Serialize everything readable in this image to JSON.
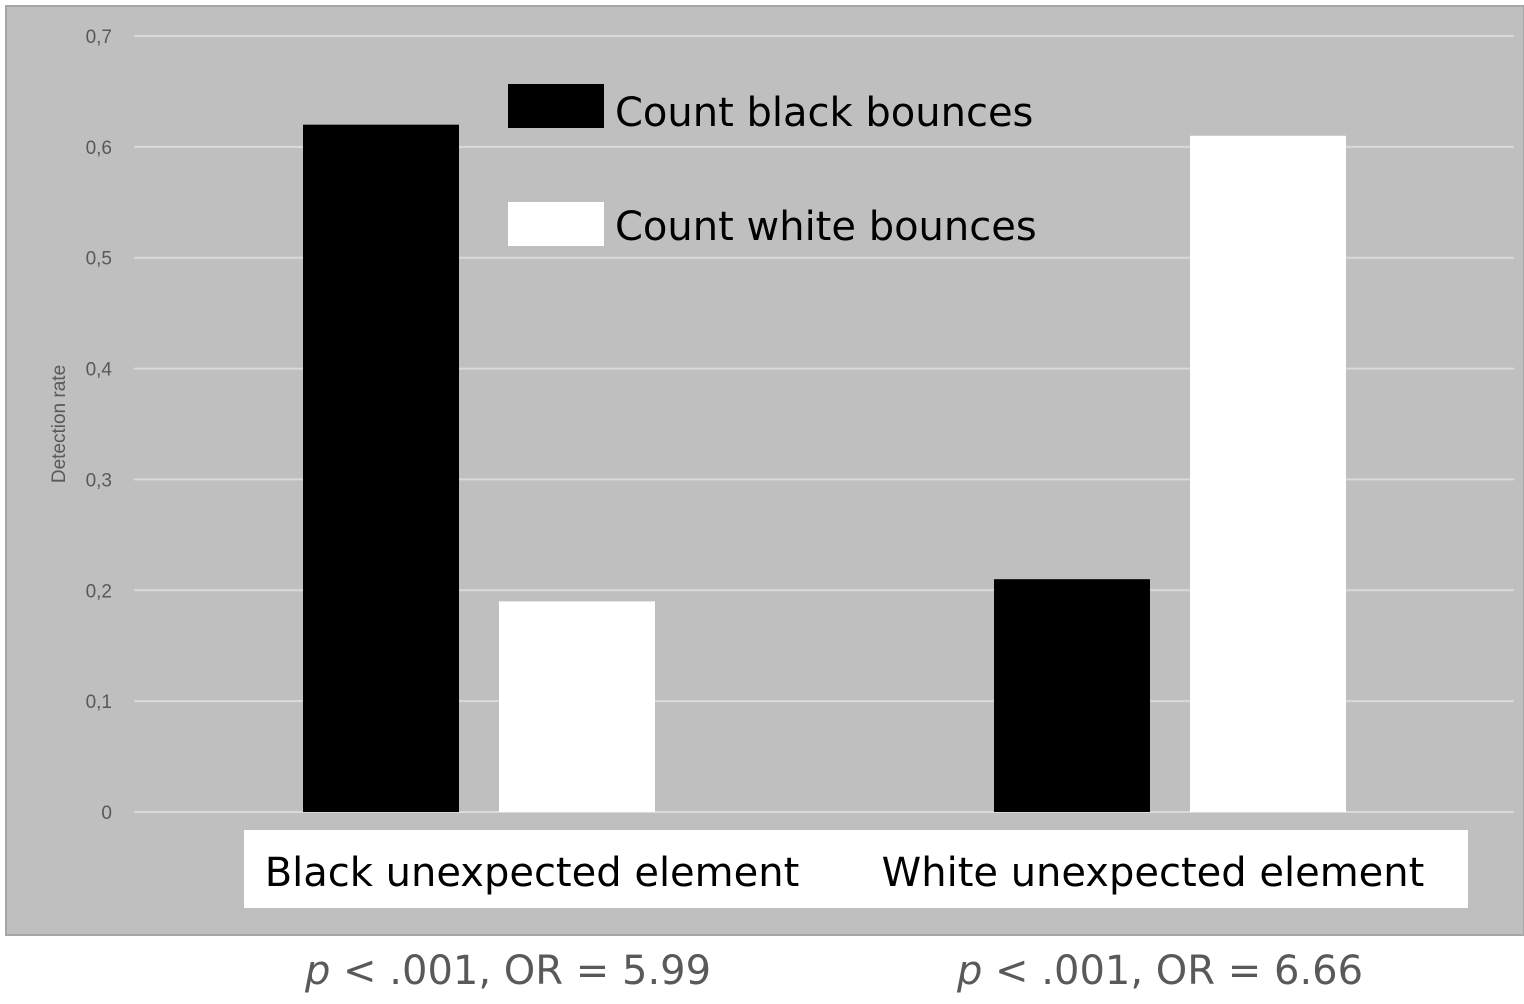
{
  "chart_data": {
    "type": "bar",
    "title": "",
    "xlabel": "",
    "ylabel": "Detection rate",
    "ylim": [
      0,
      0.7
    ],
    "yticks": [
      "0",
      "0,1",
      "0,2",
      "0,3",
      "0,4",
      "0,5",
      "0,6",
      "0,7"
    ],
    "grid": true,
    "legend_position": "top-center",
    "categories": [
      "Black unexpected element",
      "White unexpected element"
    ],
    "series": [
      {
        "name": "Count black bounces",
        "color": "#000000",
        "values": [
          0.62,
          0.21
        ]
      },
      {
        "name": "Count white bounces",
        "color": "#ffffff",
        "values": [
          0.19,
          0.61
        ]
      }
    ],
    "plot_background": "#bfbfbf",
    "gridline_color": "#d9d9d9",
    "annotations": [
      {
        "p_label": "p",
        "text": " < .001, OR = 5.99"
      },
      {
        "p_label": "p",
        "text": " < .001, OR = 6.66"
      }
    ]
  }
}
